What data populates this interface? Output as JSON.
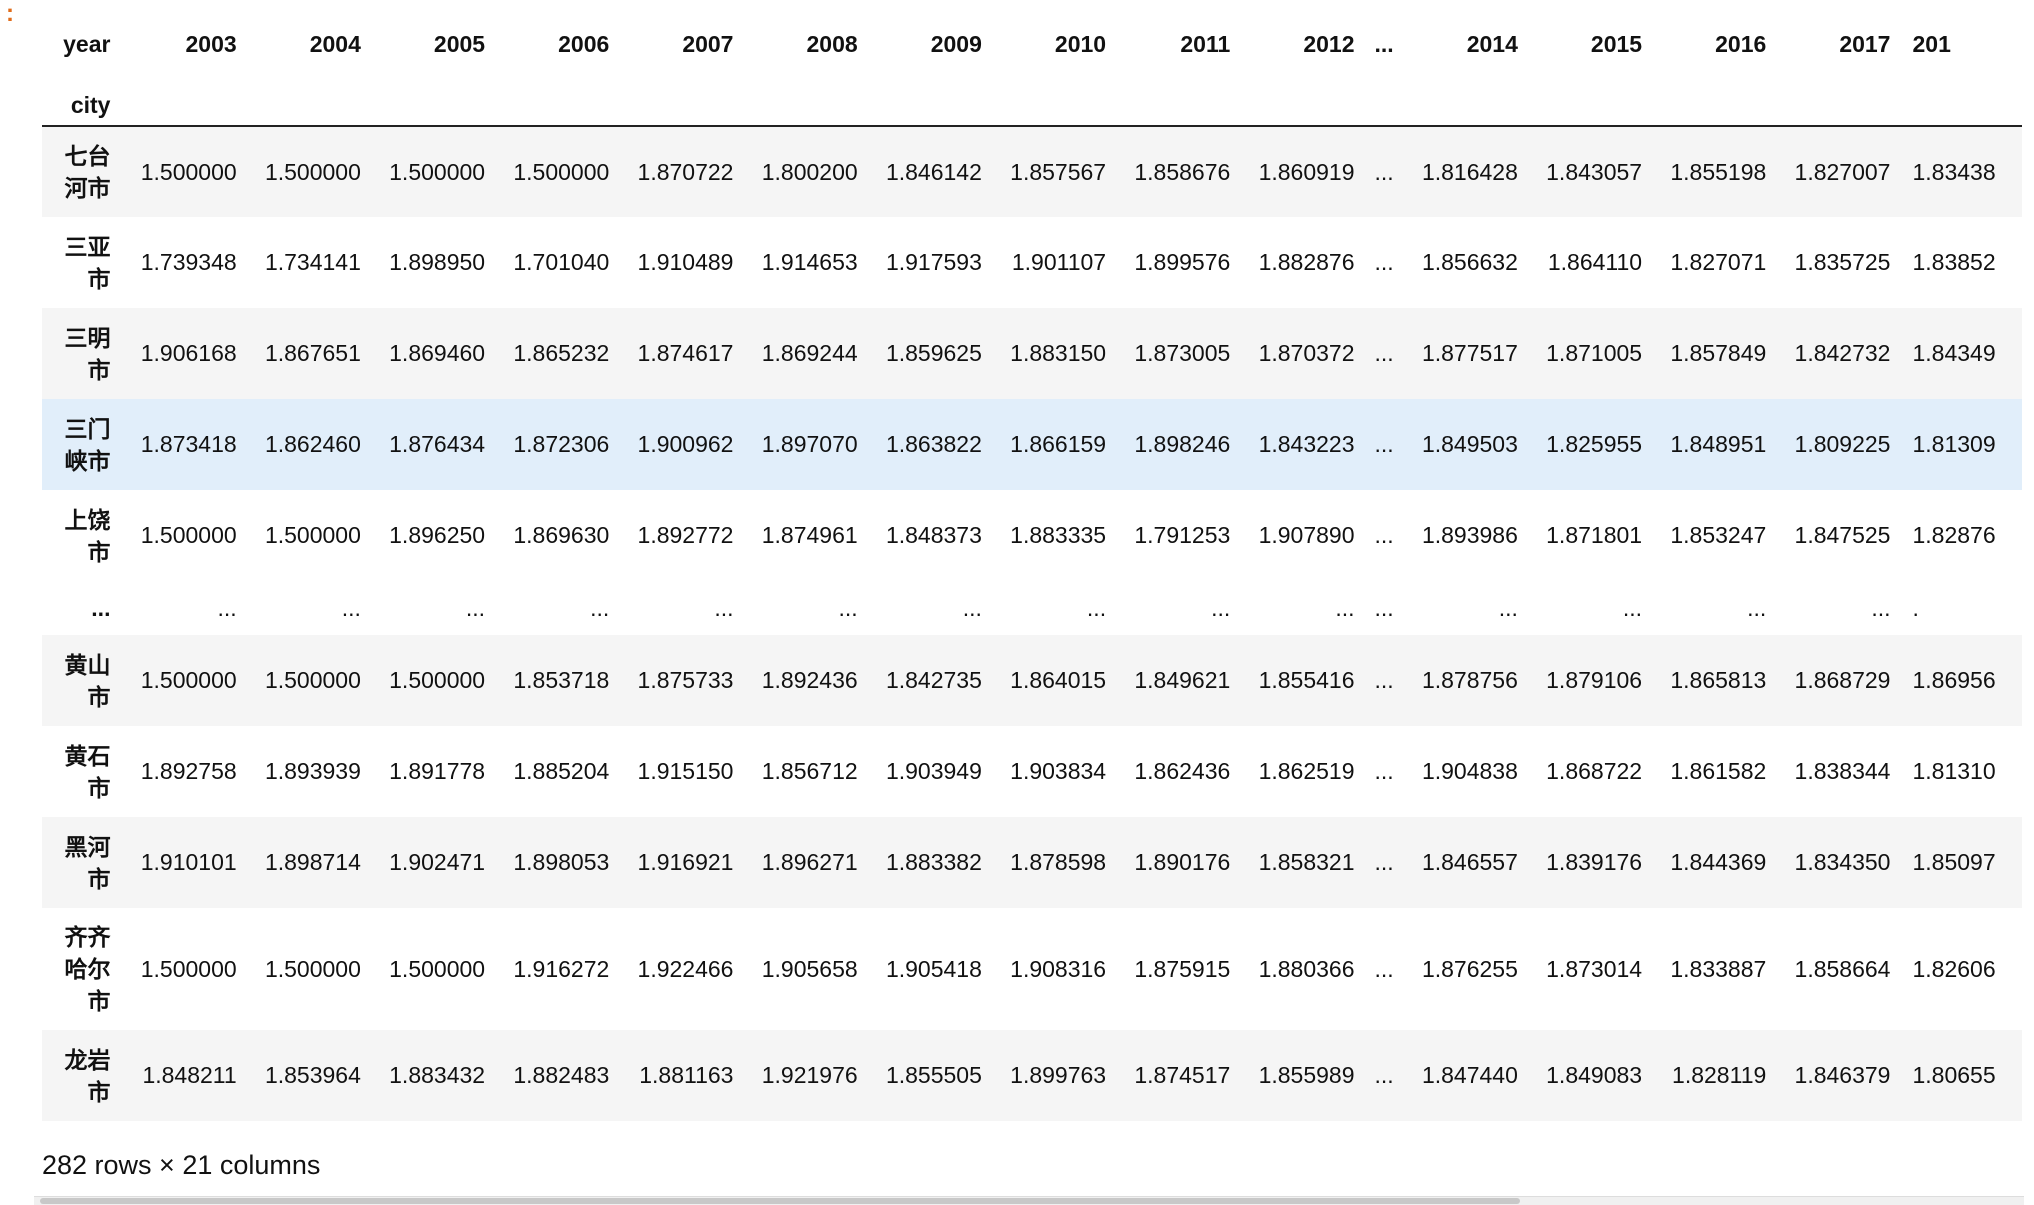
{
  "prompt_marker": ":",
  "table": {
    "columns_name": "year",
    "index_name": "city",
    "columns": [
      "2003",
      "2004",
      "2005",
      "2006",
      "2007",
      "2008",
      "2009",
      "2010",
      "2011",
      "2012",
      "...",
      "2014",
      "2015",
      "2016",
      "2017",
      "201"
    ],
    "rows": [
      {
        "label": "七台河市",
        "values": [
          "1.500000",
          "1.500000",
          "1.500000",
          "1.500000",
          "1.870722",
          "1.800200",
          "1.846142",
          "1.857567",
          "1.858676",
          "1.860919",
          "...",
          "1.816428",
          "1.843057",
          "1.855198",
          "1.827007",
          "1.83438"
        ]
      },
      {
        "label": "三亚市",
        "values": [
          "1.739348",
          "1.734141",
          "1.898950",
          "1.701040",
          "1.910489",
          "1.914653",
          "1.917593",
          "1.901107",
          "1.899576",
          "1.882876",
          "...",
          "1.856632",
          "1.864110",
          "1.827071",
          "1.835725",
          "1.83852"
        ]
      },
      {
        "label": "三明市",
        "values": [
          "1.906168",
          "1.867651",
          "1.869460",
          "1.865232",
          "1.874617",
          "1.869244",
          "1.859625",
          "1.883150",
          "1.873005",
          "1.870372",
          "...",
          "1.877517",
          "1.871005",
          "1.857849",
          "1.842732",
          "1.84349"
        ]
      },
      {
        "label": "三门峡市",
        "values": [
          "1.873418",
          "1.862460",
          "1.876434",
          "1.872306",
          "1.900962",
          "1.897070",
          "1.863822",
          "1.866159",
          "1.898246",
          "1.843223",
          "...",
          "1.849503",
          "1.825955",
          "1.848951",
          "1.809225",
          "1.81309"
        ]
      },
      {
        "label": "上饶市",
        "values": [
          "1.500000",
          "1.500000",
          "1.896250",
          "1.869630",
          "1.892772",
          "1.874961",
          "1.848373",
          "1.883335",
          "1.791253",
          "1.907890",
          "...",
          "1.893986",
          "1.871801",
          "1.853247",
          "1.847525",
          "1.82876"
        ]
      },
      {
        "label": "...",
        "values": [
          "...",
          "...",
          "...",
          "...",
          "...",
          "...",
          "...",
          "...",
          "...",
          "...",
          "...",
          "...",
          "...",
          "...",
          "...",
          "."
        ]
      },
      {
        "label": "黄山市",
        "values": [
          "1.500000",
          "1.500000",
          "1.500000",
          "1.853718",
          "1.875733",
          "1.892436",
          "1.842735",
          "1.864015",
          "1.849621",
          "1.855416",
          "...",
          "1.878756",
          "1.879106",
          "1.865813",
          "1.868729",
          "1.86956"
        ]
      },
      {
        "label": "黄石市",
        "values": [
          "1.892758",
          "1.893939",
          "1.891778",
          "1.885204",
          "1.915150",
          "1.856712",
          "1.903949",
          "1.903834",
          "1.862436",
          "1.862519",
          "...",
          "1.904838",
          "1.868722",
          "1.861582",
          "1.838344",
          "1.81310"
        ]
      },
      {
        "label": "黑河市",
        "values": [
          "1.910101",
          "1.898714",
          "1.902471",
          "1.898053",
          "1.916921",
          "1.896271",
          "1.883382",
          "1.878598",
          "1.890176",
          "1.858321",
          "...",
          "1.846557",
          "1.839176",
          "1.844369",
          "1.834350",
          "1.85097"
        ]
      },
      {
        "label": "齐齐哈尔市",
        "values": [
          "1.500000",
          "1.500000",
          "1.500000",
          "1.916272",
          "1.922466",
          "1.905658",
          "1.905418",
          "1.908316",
          "1.875915",
          "1.880366",
          "...",
          "1.876255",
          "1.873014",
          "1.833887",
          "1.858664",
          "1.82606"
        ]
      },
      {
        "label": "龙岩市",
        "values": [
          "1.848211",
          "1.853964",
          "1.883432",
          "1.882483",
          "1.881163",
          "1.921976",
          "1.855505",
          "1.899763",
          "1.874517",
          "1.855989",
          "...",
          "1.847440",
          "1.849083",
          "1.828119",
          "1.846379",
          "1.80655"
        ]
      }
    ],
    "footer": "282 rows × 21 columns"
  }
}
